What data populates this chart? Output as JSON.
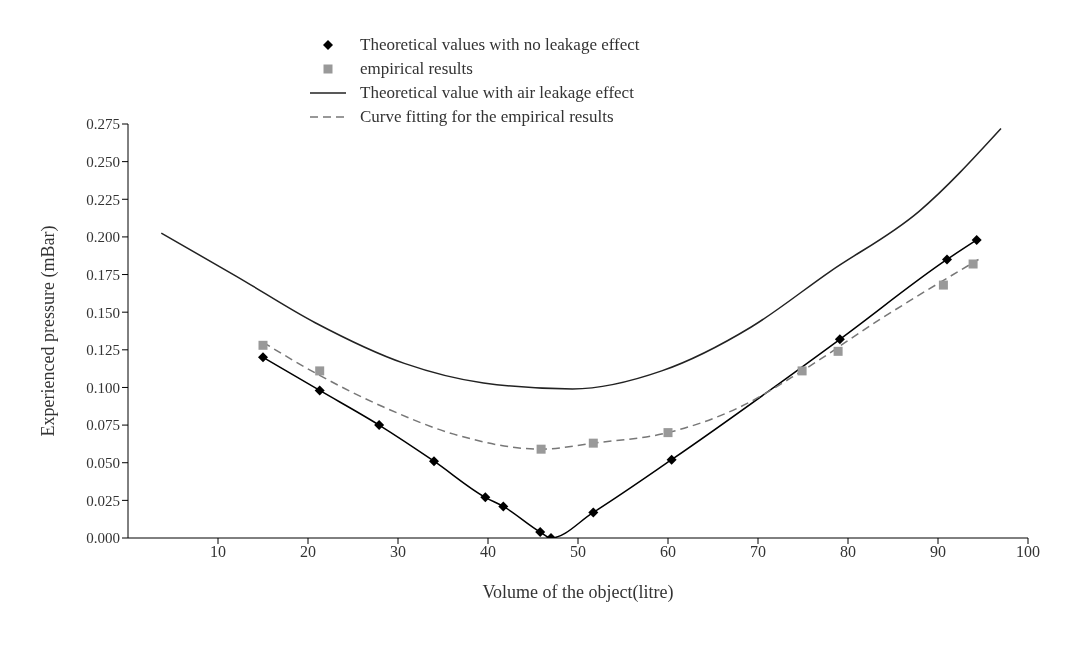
{
  "chart_data": {
    "type": "line",
    "xlabel": "Volume of the object(litre)",
    "ylabel": "Experienced pressure (mBar)",
    "xlim": [
      0,
      100
    ],
    "xticks": [
      10,
      20,
      30,
      40,
      50,
      60,
      70,
      80,
      90,
      100
    ],
    "ylim": [
      0,
      0.275
    ],
    "yticks": [
      {
        "value": 0,
        "label": "0.000"
      },
      {
        "value": 0.025,
        "label": "0.025"
      },
      {
        "value": 0.05,
        "label": "0.050"
      },
      {
        "value": 0.075,
        "label": "0.075"
      },
      {
        "value": 0.1,
        "label": "0.100"
      },
      {
        "value": 0.125,
        "label": "0.125"
      },
      {
        "value": 0.15,
        "label": "0.150"
      },
      {
        "value": 0.175,
        "label": "0.175"
      },
      {
        "value": 0.2,
        "label": "0.200"
      },
      {
        "value": 0.225,
        "label": "0.225"
      },
      {
        "value": 0.25,
        "label": "0.250"
      },
      {
        "value": 0.275,
        "label": "0.275"
      }
    ],
    "grid": false,
    "legend": "top",
    "series": [
      {
        "name": "Theoretical values with no leakage effect",
        "color": "#000000",
        "marker": "diamond",
        "line_style": "solid",
        "x": [
          15,
          21.3,
          27.9,
          34,
          39.7,
          41.7,
          45.8,
          47,
          51.7,
          60.4,
          79.1,
          91,
          94.3
        ],
        "values": [
          0.12,
          0.098,
          0.075,
          0.051,
          0.027,
          0.021,
          0.004,
          0,
          0.017,
          0.052,
          0.132,
          0.185,
          0.198
        ]
      },
      {
        "name": "empirical results",
        "type": "scatter",
        "color": "#999999",
        "marker": "square",
        "x": [
          15,
          21.3,
          45.9,
          51.7,
          60,
          74.9,
          78.9,
          90.6,
          93.9
        ],
        "values": [
          0.128,
          0.111,
          0.059,
          0.063,
          0.07,
          0.111,
          0.124,
          0.168,
          0.182
        ]
      },
      {
        "name": "Theoretical value with air leakage effect",
        "color": "#222222",
        "marker": "none",
        "line_style": "solid",
        "x": [
          3.7,
          12,
          20.8,
          30.7,
          39.5,
          49.4,
          59.3,
          69.2,
          78,
          87.9,
          97
        ],
        "values": [
          0.2025,
          0.174,
          0.143,
          0.116,
          0.103,
          0.099,
          0.111,
          0.14,
          0.177,
          0.217,
          0.272
        ]
      },
      {
        "name": "Curve fitting for the empirical results",
        "color": "#777777",
        "marker": "none",
        "line_style": "dashed",
        "x": [
          15,
          21.3,
          28.4,
          36.2,
          45.9,
          51.7,
          60,
          68,
          74.9,
          83.5,
          94.5
        ],
        "values": [
          0.13,
          0.108,
          0.087,
          0.069,
          0.059,
          0.063,
          0.07,
          0.087,
          0.111,
          0.145,
          0.185
        ]
      }
    ]
  }
}
